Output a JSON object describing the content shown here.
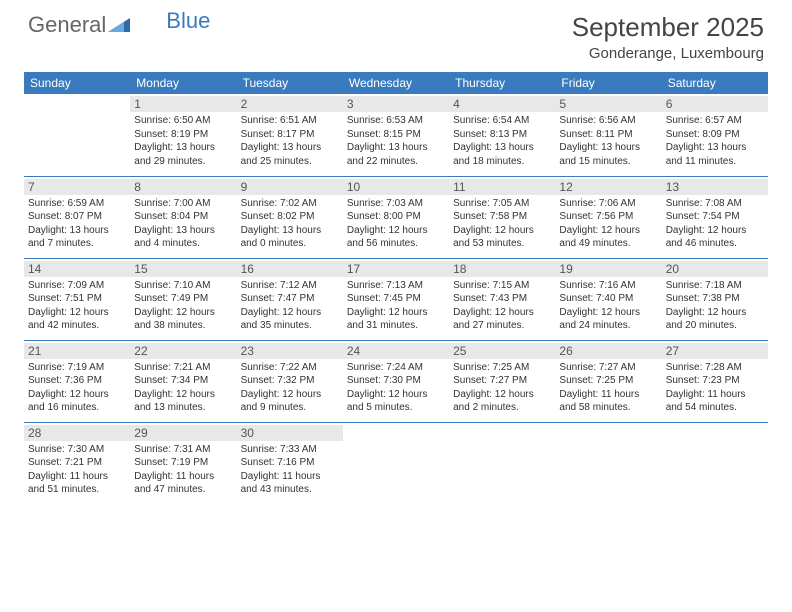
{
  "logo": {
    "text1": "General",
    "text2": "Blue"
  },
  "title": "September 2025",
  "location": "Gonderange, Luxembourg",
  "colors": {
    "header_bg": "#3a7bbf",
    "header_text": "#ffffff",
    "daynum_bg": "#e8e8e8",
    "border": "#3a7bbf",
    "text": "#333333"
  },
  "weekdays": [
    "Sunday",
    "Monday",
    "Tuesday",
    "Wednesday",
    "Thursday",
    "Friday",
    "Saturday"
  ],
  "weeks": [
    [
      {
        "day": "",
        "sunrise": "",
        "sunset": "",
        "daylight": ""
      },
      {
        "day": "1",
        "sunrise": "Sunrise: 6:50 AM",
        "sunset": "Sunset: 8:19 PM",
        "daylight": "Daylight: 13 hours and 29 minutes."
      },
      {
        "day": "2",
        "sunrise": "Sunrise: 6:51 AM",
        "sunset": "Sunset: 8:17 PM",
        "daylight": "Daylight: 13 hours and 25 minutes."
      },
      {
        "day": "3",
        "sunrise": "Sunrise: 6:53 AM",
        "sunset": "Sunset: 8:15 PM",
        "daylight": "Daylight: 13 hours and 22 minutes."
      },
      {
        "day": "4",
        "sunrise": "Sunrise: 6:54 AM",
        "sunset": "Sunset: 8:13 PM",
        "daylight": "Daylight: 13 hours and 18 minutes."
      },
      {
        "day": "5",
        "sunrise": "Sunrise: 6:56 AM",
        "sunset": "Sunset: 8:11 PM",
        "daylight": "Daylight: 13 hours and 15 minutes."
      },
      {
        "day": "6",
        "sunrise": "Sunrise: 6:57 AM",
        "sunset": "Sunset: 8:09 PM",
        "daylight": "Daylight: 13 hours and 11 minutes."
      }
    ],
    [
      {
        "day": "7",
        "sunrise": "Sunrise: 6:59 AM",
        "sunset": "Sunset: 8:07 PM",
        "daylight": "Daylight: 13 hours and 7 minutes."
      },
      {
        "day": "8",
        "sunrise": "Sunrise: 7:00 AM",
        "sunset": "Sunset: 8:04 PM",
        "daylight": "Daylight: 13 hours and 4 minutes."
      },
      {
        "day": "9",
        "sunrise": "Sunrise: 7:02 AM",
        "sunset": "Sunset: 8:02 PM",
        "daylight": "Daylight: 13 hours and 0 minutes."
      },
      {
        "day": "10",
        "sunrise": "Sunrise: 7:03 AM",
        "sunset": "Sunset: 8:00 PM",
        "daylight": "Daylight: 12 hours and 56 minutes."
      },
      {
        "day": "11",
        "sunrise": "Sunrise: 7:05 AM",
        "sunset": "Sunset: 7:58 PM",
        "daylight": "Daylight: 12 hours and 53 minutes."
      },
      {
        "day": "12",
        "sunrise": "Sunrise: 7:06 AM",
        "sunset": "Sunset: 7:56 PM",
        "daylight": "Daylight: 12 hours and 49 minutes."
      },
      {
        "day": "13",
        "sunrise": "Sunrise: 7:08 AM",
        "sunset": "Sunset: 7:54 PM",
        "daylight": "Daylight: 12 hours and 46 minutes."
      }
    ],
    [
      {
        "day": "14",
        "sunrise": "Sunrise: 7:09 AM",
        "sunset": "Sunset: 7:51 PM",
        "daylight": "Daylight: 12 hours and 42 minutes."
      },
      {
        "day": "15",
        "sunrise": "Sunrise: 7:10 AM",
        "sunset": "Sunset: 7:49 PM",
        "daylight": "Daylight: 12 hours and 38 minutes."
      },
      {
        "day": "16",
        "sunrise": "Sunrise: 7:12 AM",
        "sunset": "Sunset: 7:47 PM",
        "daylight": "Daylight: 12 hours and 35 minutes."
      },
      {
        "day": "17",
        "sunrise": "Sunrise: 7:13 AM",
        "sunset": "Sunset: 7:45 PM",
        "daylight": "Daylight: 12 hours and 31 minutes."
      },
      {
        "day": "18",
        "sunrise": "Sunrise: 7:15 AM",
        "sunset": "Sunset: 7:43 PM",
        "daylight": "Daylight: 12 hours and 27 minutes."
      },
      {
        "day": "19",
        "sunrise": "Sunrise: 7:16 AM",
        "sunset": "Sunset: 7:40 PM",
        "daylight": "Daylight: 12 hours and 24 minutes."
      },
      {
        "day": "20",
        "sunrise": "Sunrise: 7:18 AM",
        "sunset": "Sunset: 7:38 PM",
        "daylight": "Daylight: 12 hours and 20 minutes."
      }
    ],
    [
      {
        "day": "21",
        "sunrise": "Sunrise: 7:19 AM",
        "sunset": "Sunset: 7:36 PM",
        "daylight": "Daylight: 12 hours and 16 minutes."
      },
      {
        "day": "22",
        "sunrise": "Sunrise: 7:21 AM",
        "sunset": "Sunset: 7:34 PM",
        "daylight": "Daylight: 12 hours and 13 minutes."
      },
      {
        "day": "23",
        "sunrise": "Sunrise: 7:22 AM",
        "sunset": "Sunset: 7:32 PM",
        "daylight": "Daylight: 12 hours and 9 minutes."
      },
      {
        "day": "24",
        "sunrise": "Sunrise: 7:24 AM",
        "sunset": "Sunset: 7:30 PM",
        "daylight": "Daylight: 12 hours and 5 minutes."
      },
      {
        "day": "25",
        "sunrise": "Sunrise: 7:25 AM",
        "sunset": "Sunset: 7:27 PM",
        "daylight": "Daylight: 12 hours and 2 minutes."
      },
      {
        "day": "26",
        "sunrise": "Sunrise: 7:27 AM",
        "sunset": "Sunset: 7:25 PM",
        "daylight": "Daylight: 11 hours and 58 minutes."
      },
      {
        "day": "27",
        "sunrise": "Sunrise: 7:28 AM",
        "sunset": "Sunset: 7:23 PM",
        "daylight": "Daylight: 11 hours and 54 minutes."
      }
    ],
    [
      {
        "day": "28",
        "sunrise": "Sunrise: 7:30 AM",
        "sunset": "Sunset: 7:21 PM",
        "daylight": "Daylight: 11 hours and 51 minutes."
      },
      {
        "day": "29",
        "sunrise": "Sunrise: 7:31 AM",
        "sunset": "Sunset: 7:19 PM",
        "daylight": "Daylight: 11 hours and 47 minutes."
      },
      {
        "day": "30",
        "sunrise": "Sunrise: 7:33 AM",
        "sunset": "Sunset: 7:16 PM",
        "daylight": "Daylight: 11 hours and 43 minutes."
      },
      {
        "day": "",
        "sunrise": "",
        "sunset": "",
        "daylight": ""
      },
      {
        "day": "",
        "sunrise": "",
        "sunset": "",
        "daylight": ""
      },
      {
        "day": "",
        "sunrise": "",
        "sunset": "",
        "daylight": ""
      },
      {
        "day": "",
        "sunrise": "",
        "sunset": "",
        "daylight": ""
      }
    ]
  ]
}
